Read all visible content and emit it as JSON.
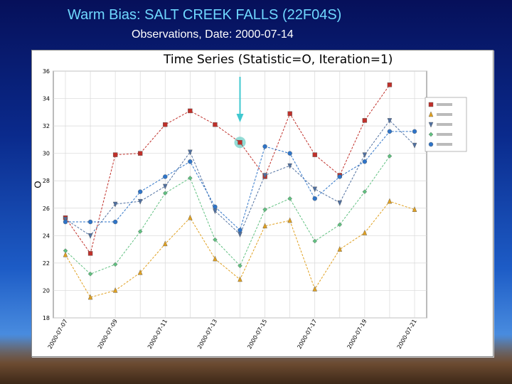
{
  "slide": {
    "title": "Warm Bias: SALT CREEK FALLS (22F04S)",
    "subtitle": "Observations, Date: 2000-07-14"
  },
  "colors": {
    "series": [
      "#c0302a",
      "#e0a020",
      "#5070a0",
      "#60c080",
      "#2e74c8"
    ],
    "highlight": "#70d0c8",
    "arrow": "#40c8d0"
  },
  "chart_data": {
    "type": "line",
    "title": "Time Series (Statistic=O, Iteration=1)",
    "ylabel": "O",
    "ylim": [
      18,
      36
    ],
    "yticks": [
      18,
      20,
      22,
      24,
      26,
      28,
      30,
      32,
      34,
      36
    ],
    "x": [
      "2000-07-07",
      "2000-07-08",
      "2000-07-09",
      "2000-07-10",
      "2000-07-11",
      "2000-07-12",
      "2000-07-13",
      "2000-07-14",
      "2000-07-15",
      "2000-07-16",
      "2000-07-17",
      "2000-07-18",
      "2000-07-19",
      "2000-07-20",
      "2000-07-21"
    ],
    "xtick_labels": [
      "2000-07-07",
      "2000-07-09",
      "2000-07-11",
      "2000-07-13",
      "2000-07-15",
      "2000-07-17",
      "2000-07-19",
      "2000-07-21"
    ],
    "legend_position": "right",
    "series": [
      {
        "marker": "square",
        "values": [
          25.3,
          22.7,
          29.9,
          30.0,
          32.1,
          33.1,
          32.1,
          30.8,
          28.3,
          32.9,
          29.9,
          28.4,
          32.4,
          35.0,
          null
        ]
      },
      {
        "marker": "triangle",
        "values": [
          22.6,
          19.5,
          20.0,
          21.3,
          23.4,
          25.3,
          22.3,
          20.8,
          24.7,
          25.1,
          20.1,
          23.0,
          24.2,
          26.5,
          25.9
        ]
      },
      {
        "marker": "triangle-down",
        "values": [
          25.2,
          24.0,
          26.3,
          26.5,
          27.6,
          30.1,
          25.8,
          24.1,
          28.4,
          29.1,
          27.4,
          26.4,
          29.9,
          32.4,
          30.6
        ]
      },
      {
        "marker": "diamond",
        "values": [
          22.9,
          21.2,
          21.9,
          24.3,
          27.1,
          28.2,
          23.7,
          21.8,
          25.9,
          26.7,
          23.6,
          24.8,
          27.2,
          29.8,
          null
        ]
      },
      {
        "marker": "circle",
        "values": [
          25.0,
          25.0,
          25.0,
          27.2,
          28.3,
          29.4,
          26.1,
          24.4,
          30.5,
          30.0,
          26.7,
          28.3,
          29.4,
          31.6,
          31.6
        ]
      }
    ],
    "highlight": {
      "x": "2000-07-14",
      "series_index": 0,
      "value": 30.8
    }
  }
}
